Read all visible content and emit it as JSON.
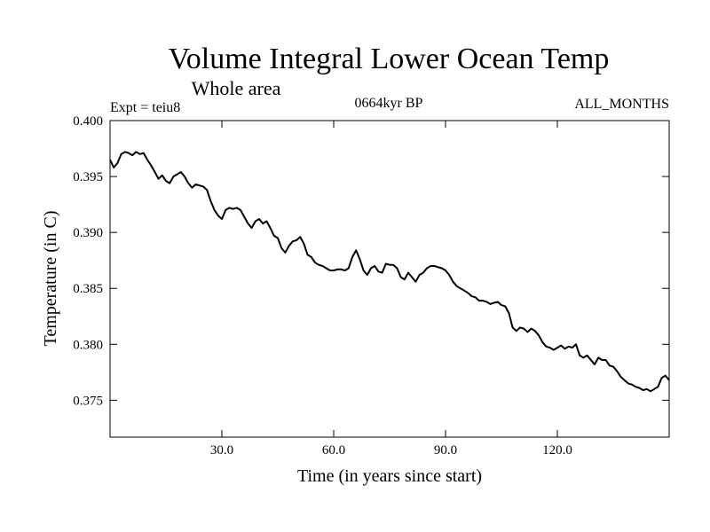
{
  "chart_data": {
    "type": "line",
    "title": "Volume Integral Lower Ocean Temp",
    "subtitle": "Whole area",
    "experiment_label": "Expt = teiu8",
    "period_label": "0664kyr BP",
    "months_label": "ALL_MONTHS",
    "xlabel": "Time (in years since start)",
    "ylabel": "Temperature (in C)",
    "xlim": [
      0,
      150
    ],
    "ylim": [
      0.3717,
      0.4
    ],
    "x_ticks": [
      30,
      60,
      90,
      120
    ],
    "x_tick_labels": [
      "30.0",
      "60.0",
      "90.0",
      "120.0"
    ],
    "y_ticks": [
      0.4,
      0.395,
      0.39,
      0.385,
      0.38,
      0.375
    ],
    "y_tick_labels": [
      "0.400",
      "0.395",
      "0.390",
      "0.385",
      "0.380",
      "0.375"
    ],
    "series": [
      {
        "name": "Volume Integral Lower Ocean Temp",
        "color": "#000000",
        "x": [
          0,
          1,
          2,
          3,
          4,
          5,
          6,
          7,
          8,
          9,
          10,
          11,
          12,
          13,
          14,
          15,
          16,
          17,
          18,
          19,
          20,
          21,
          22,
          23,
          24,
          25,
          26,
          27,
          28,
          29,
          30,
          31,
          32,
          33,
          34,
          35,
          36,
          37,
          38,
          39,
          40,
          41,
          42,
          43,
          44,
          45,
          46,
          47,
          48,
          49,
          50,
          51,
          52,
          53,
          54,
          55,
          56,
          57,
          58,
          59,
          60,
          61,
          62,
          63,
          64,
          65,
          66,
          67,
          68,
          69,
          70,
          71,
          72,
          73,
          74,
          75,
          76,
          77,
          78,
          79,
          80,
          81,
          82,
          83,
          84,
          85,
          86,
          87,
          88,
          89,
          90,
          91,
          92,
          93,
          94,
          95,
          96,
          97,
          98,
          99,
          100,
          101,
          102,
          103,
          104,
          105,
          106,
          107,
          108,
          109,
          110,
          111,
          112,
          113,
          114,
          115,
          116,
          117,
          118,
          119,
          120,
          121,
          122,
          123,
          124,
          125,
          126,
          127,
          128,
          129,
          130,
          131,
          132,
          133,
          134,
          135,
          136,
          137,
          138,
          139,
          140,
          141,
          142,
          143,
          144,
          145,
          146,
          147,
          148,
          149,
          150
        ],
        "y": [
          0.3965,
          0.3958,
          0.3962,
          0.397,
          0.3972,
          0.3971,
          0.3969,
          0.3972,
          0.397,
          0.3971,
          0.3965,
          0.396,
          0.3954,
          0.3948,
          0.3951,
          0.3946,
          0.3944,
          0.395,
          0.3952,
          0.3954,
          0.395,
          0.3944,
          0.394,
          0.3943,
          0.3942,
          0.3941,
          0.3938,
          0.3928,
          0.392,
          0.3915,
          0.3912,
          0.392,
          0.3922,
          0.3921,
          0.3922,
          0.392,
          0.3914,
          0.3908,
          0.3904,
          0.391,
          0.3912,
          0.3908,
          0.391,
          0.3904,
          0.3897,
          0.3895,
          0.3886,
          0.3882,
          0.3888,
          0.3892,
          0.3893,
          0.3896,
          0.389,
          0.388,
          0.3878,
          0.3873,
          0.3871,
          0.387,
          0.3868,
          0.3866,
          0.3866,
          0.3867,
          0.3867,
          0.3866,
          0.3868,
          0.3878,
          0.3884,
          0.3876,
          0.3866,
          0.3862,
          0.3868,
          0.387,
          0.3865,
          0.3864,
          0.3872,
          0.3871,
          0.3871,
          0.3868,
          0.386,
          0.3858,
          0.3864,
          0.386,
          0.3856,
          0.3862,
          0.3864,
          0.3868,
          0.387,
          0.387,
          0.3869,
          0.3868,
          0.3866,
          0.3862,
          0.3856,
          0.3852,
          0.385,
          0.3848,
          0.3846,
          0.3843,
          0.3842,
          0.3839,
          0.3839,
          0.3838,
          0.3836,
          0.3837,
          0.3838,
          0.3835,
          0.3834,
          0.3828,
          0.3815,
          0.3812,
          0.3815,
          0.3814,
          0.3811,
          0.3814,
          0.3812,
          0.3808,
          0.3802,
          0.3798,
          0.3797,
          0.3795,
          0.3797,
          0.3799,
          0.3796,
          0.3798,
          0.3797,
          0.38,
          0.379,
          0.3788,
          0.379,
          0.3786,
          0.3782,
          0.3788,
          0.3786,
          0.3786,
          0.3781,
          0.378,
          0.3776,
          0.3771,
          0.3768,
          0.3765,
          0.3764,
          0.3762,
          0.3761,
          0.3759,
          0.376,
          0.3758,
          0.376,
          0.3762,
          0.377,
          0.3772,
          0.3768
        ]
      }
    ]
  }
}
